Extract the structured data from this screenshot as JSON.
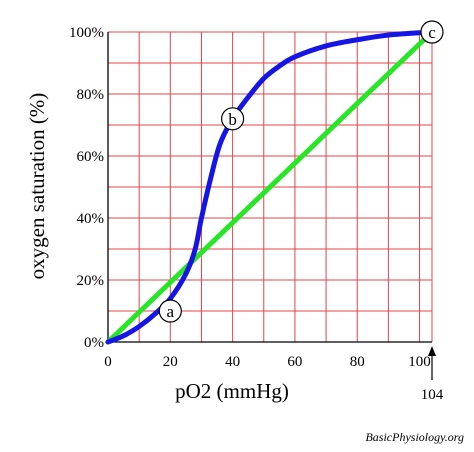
{
  "chart_data": {
    "type": "line",
    "xlabel": "pO2 (mmHg)",
    "ylabel": "oxygen saturation (%)",
    "xlim": [
      0,
      104
    ],
    "ylim": [
      0,
      100
    ],
    "x_ticks": [
      "0",
      "20",
      "40",
      "60",
      "80",
      "100"
    ],
    "y_ticks": [
      "0%",
      "20%",
      "40%",
      "60%",
      "80%",
      "100%"
    ],
    "grid": true,
    "colors": {
      "grid": "#e2444a",
      "curve": "#1515e6",
      "line": "#26e626"
    },
    "series": [
      {
        "values": [
          [
            0,
            0
          ],
          [
            5,
            2
          ],
          [
            10,
            5
          ],
          [
            15,
            9
          ],
          [
            20,
            14
          ],
          [
            25,
            22
          ],
          [
            28,
            30
          ],
          [
            30,
            40
          ],
          [
            33,
            53
          ],
          [
            36,
            64
          ],
          [
            40,
            72
          ],
          [
            45,
            79
          ],
          [
            50,
            85
          ],
          [
            55,
            89
          ],
          [
            60,
            92
          ],
          [
            70,
            95.5
          ],
          [
            80,
            97.5
          ],
          [
            90,
            99
          ],
          [
            104,
            100
          ]
        ]
      },
      {
        "values": [
          [
            0,
            0
          ],
          [
            104,
            100
          ]
        ]
      }
    ],
    "annotations": [
      {
        "label": "a",
        "x": 20,
        "y": 10
      },
      {
        "label": "b",
        "x": 40,
        "y": 72
      },
      {
        "label": "c",
        "x": 104,
        "y": 100
      }
    ],
    "arrow_label": "104"
  },
  "credit": "BasicPhysiology.org"
}
